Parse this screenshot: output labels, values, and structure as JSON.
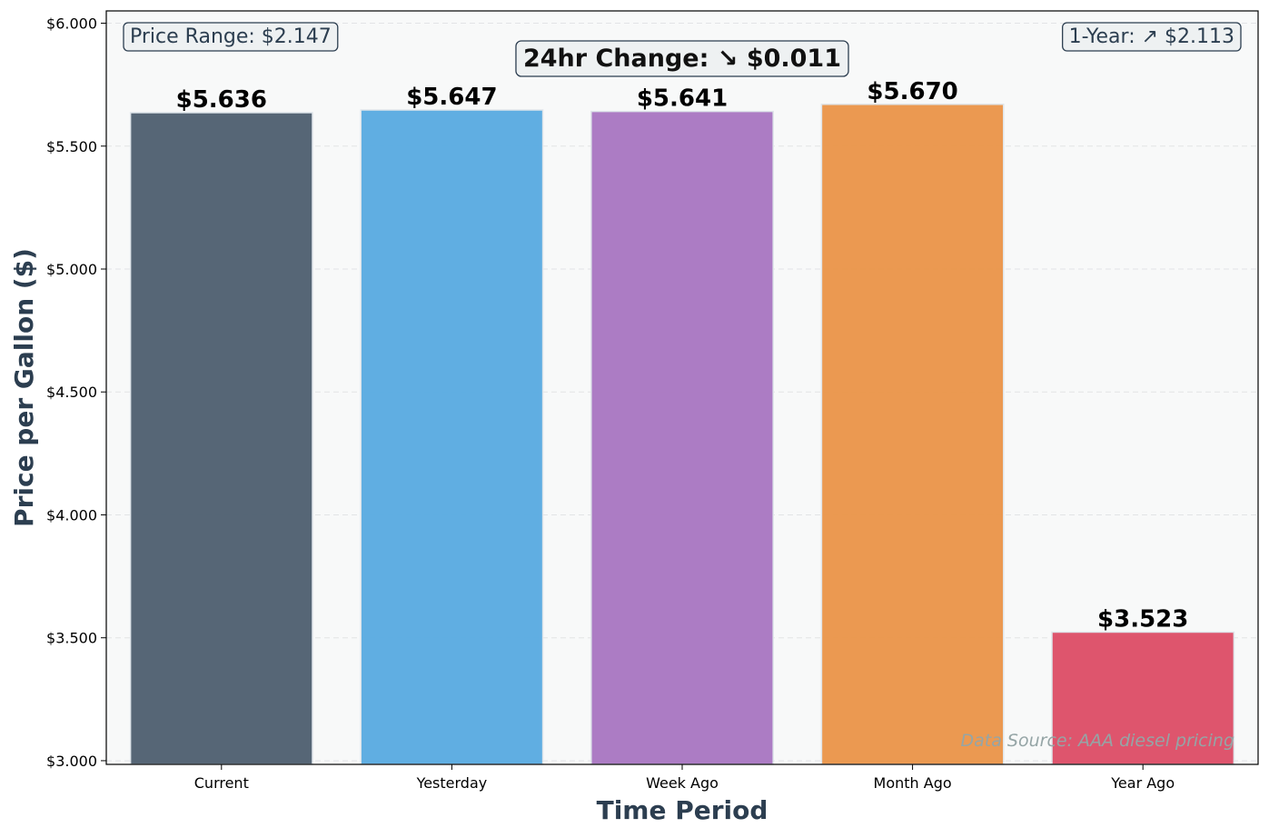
{
  "chart_data": {
    "type": "bar",
    "categories": [
      "Current",
      "Yesterday",
      "Week Ago",
      "Month Ago",
      "Year Ago"
    ],
    "values": [
      5.636,
      5.647,
      5.641,
      5.67,
      3.523
    ],
    "value_labels": [
      "$5.636",
      "$5.647",
      "$5.641",
      "$5.670",
      "$3.523"
    ],
    "colors": [
      "#536474",
      "#5dade2",
      "#ab7ac3",
      "#eb984e",
      "#de526b"
    ],
    "title": "",
    "xlabel": "Time Period",
    "ylabel": "Price per Gallon ($)",
    "ylim": [
      2.985,
      6.05
    ],
    "yticks": [
      3.0,
      3.5,
      4.0,
      4.5,
      5.0,
      5.5,
      6.0
    ],
    "ytick_labels": [
      "$3.000",
      "$3.500",
      "$4.000",
      "$4.500",
      "$5.000",
      "$5.500",
      "$6.000"
    ],
    "grid": true,
    "annotations": {
      "price_range": "Price Range: $2.147",
      "change_24hr": "24hr Change: ↘ $0.011",
      "one_year": "1-Year: ↗ $2.113",
      "source": "Data Source: AAA diesel pricing"
    },
    "style": {
      "plot_background": "#f8f9f9",
      "label_color": "#2c3e50",
      "source_color": "#95a5a6",
      "annotation_box": "#ecf0f1"
    }
  }
}
